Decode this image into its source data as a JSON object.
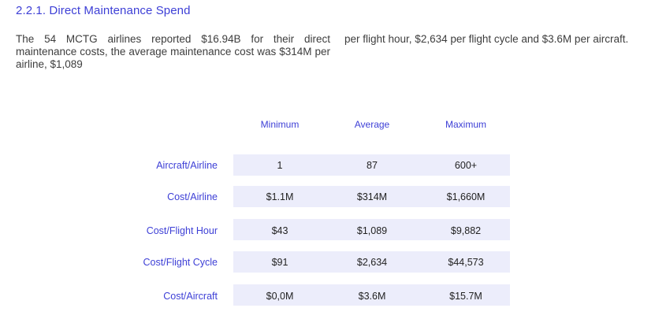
{
  "section": {
    "heading": "2.2.1. Direct Maintenance Spend",
    "paragraph_left": "The 54 MCTG airlines reported $16.94B for their direct maintenance costs, the average maintenance cost was $314M per airline, $1,089",
    "paragraph_right": "per flight hour, $2,634 per flight cycle and $3.6M per aircraft."
  },
  "table": {
    "columns": [
      "Minimum",
      "Average",
      "Maximum"
    ],
    "rows": [
      {
        "label": "Aircraft/Airline",
        "values": [
          "1",
          "87",
          "600+"
        ]
      },
      {
        "label": "Cost/Airline",
        "values": [
          "$1.1M",
          "$314M",
          "$1,660M"
        ]
      },
      {
        "label": "Cost/Flight Hour",
        "values": [
          "$43",
          "$1,089",
          "$9,882"
        ]
      },
      {
        "label": "Cost/Flight Cycle",
        "values": [
          "$91",
          "$2,634",
          "$44,573"
        ]
      },
      {
        "label": "Cost/Aircraft",
        "values": [
          "$0,0M",
          "$3.6M",
          "$15.7M"
        ]
      }
    ]
  },
  "colors": {
    "accent": "#3d3fd6",
    "row_band": "#ecedfb",
    "body_text": "#3d3d3d"
  }
}
